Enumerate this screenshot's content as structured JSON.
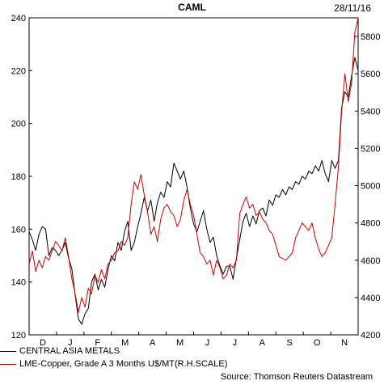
{
  "chart_data": {
    "type": "line",
    "title": "CAML",
    "date_label": "28/11/16",
    "source": "Source: Thomson Reuters Datastream",
    "x_tick_labels": [
      "D",
      "J",
      "F",
      "M",
      "A",
      "M",
      "J",
      "J",
      "A",
      "S",
      "O",
      "N"
    ],
    "left_axis": {
      "ticks": [
        120,
        140,
        160,
        180,
        200,
        220,
        240
      ],
      "range": [
        120,
        240
      ]
    },
    "right_axis": {
      "ticks": [
        4200,
        4400,
        4600,
        4800,
        5000,
        5200,
        5400,
        5600,
        5800
      ],
      "range": [
        4200,
        5900
      ]
    },
    "grid": false,
    "legend_position": "bottom-left",
    "series": [
      {
        "name": "CENTRAL ASIA METALS",
        "color": "#000000",
        "axis": "left",
        "values": [
          [
            0.0,
            159
          ],
          [
            0.01,
            156
          ],
          [
            0.02,
            152
          ],
          [
            0.03,
            158
          ],
          [
            0.04,
            161
          ],
          [
            0.05,
            160
          ],
          [
            0.06,
            150
          ],
          [
            0.07,
            153
          ],
          [
            0.08,
            152
          ],
          [
            0.09,
            150
          ],
          [
            0.1,
            152
          ],
          [
            0.11,
            155
          ],
          [
            0.12,
            149
          ],
          [
            0.13,
            145
          ],
          [
            0.14,
            135
          ],
          [
            0.15,
            126
          ],
          [
            0.16,
            124
          ],
          [
            0.17,
            128
          ],
          [
            0.18,
            130
          ],
          [
            0.19,
            140
          ],
          [
            0.2,
            143
          ],
          [
            0.21,
            137
          ],
          [
            0.22,
            141
          ],
          [
            0.23,
            138
          ],
          [
            0.24,
            145
          ],
          [
            0.25,
            150
          ],
          [
            0.26,
            148
          ],
          [
            0.27,
            155
          ],
          [
            0.28,
            152
          ],
          [
            0.29,
            159
          ],
          [
            0.3,
            163
          ],
          [
            0.31,
            152
          ],
          [
            0.32,
            155
          ],
          [
            0.33,
            161
          ],
          [
            0.34,
            166
          ],
          [
            0.35,
            172
          ],
          [
            0.36,
            167
          ],
          [
            0.37,
            171
          ],
          [
            0.38,
            163
          ],
          [
            0.39,
            170
          ],
          [
            0.4,
            174
          ],
          [
            0.41,
            172
          ],
          [
            0.42,
            178
          ],
          [
            0.43,
            176
          ],
          [
            0.44,
            185
          ],
          [
            0.45,
            182
          ],
          [
            0.46,
            179
          ],
          [
            0.47,
            182
          ],
          [
            0.48,
            176
          ],
          [
            0.49,
            168
          ],
          [
            0.5,
            162
          ],
          [
            0.51,
            159
          ],
          [
            0.52,
            163
          ],
          [
            0.53,
            167
          ],
          [
            0.54,
            160
          ],
          [
            0.55,
            155
          ],
          [
            0.56,
            157
          ],
          [
            0.57,
            150
          ],
          [
            0.58,
            146
          ],
          [
            0.59,
            143
          ],
          [
            0.6,
            146
          ],
          [
            0.61,
            146
          ],
          [
            0.62,
            141
          ],
          [
            0.63,
            149
          ],
          [
            0.64,
            156
          ],
          [
            0.65,
            163
          ],
          [
            0.66,
            166
          ],
          [
            0.67,
            161
          ],
          [
            0.68,
            165
          ],
          [
            0.69,
            162
          ],
          [
            0.7,
            167
          ],
          [
            0.71,
            168
          ],
          [
            0.72,
            165
          ],
          [
            0.73,
            171
          ],
          [
            0.74,
            169
          ],
          [
            0.75,
            173
          ],
          [
            0.76,
            172
          ],
          [
            0.77,
            175
          ],
          [
            0.78,
            173
          ],
          [
            0.79,
            176
          ],
          [
            0.8,
            175
          ],
          [
            0.81,
            178
          ],
          [
            0.82,
            177
          ],
          [
            0.83,
            180
          ],
          [
            0.84,
            179
          ],
          [
            0.85,
            182
          ],
          [
            0.86,
            181
          ],
          [
            0.87,
            184
          ],
          [
            0.88,
            182
          ],
          [
            0.89,
            186
          ],
          [
            0.9,
            181
          ],
          [
            0.91,
            178
          ],
          [
            0.92,
            186
          ],
          [
            0.93,
            183
          ],
          [
            0.94,
            186
          ],
          [
            0.95,
            206
          ],
          [
            0.96,
            212
          ],
          [
            0.97,
            210
          ],
          [
            0.98,
            218
          ],
          [
            0.99,
            225
          ],
          [
            1.0,
            220
          ]
        ]
      },
      {
        "name": "LME-Copper, Grade A 3 Months U$/MT(R.H.SCALE)",
        "color": "#cc0000",
        "axis": "right",
        "values": [
          [
            0.0,
            4580
          ],
          [
            0.01,
            4650
          ],
          [
            0.02,
            4540
          ],
          [
            0.03,
            4600
          ],
          [
            0.04,
            4560
          ],
          [
            0.05,
            4620
          ],
          [
            0.06,
            4600
          ],
          [
            0.07,
            4650
          ],
          [
            0.08,
            4700
          ],
          [
            0.09,
            4680
          ],
          [
            0.1,
            4650
          ],
          [
            0.11,
            4720
          ],
          [
            0.12,
            4620
          ],
          [
            0.13,
            4500
          ],
          [
            0.14,
            4420
          ],
          [
            0.15,
            4320
          ],
          [
            0.16,
            4400
          ],
          [
            0.17,
            4350
          ],
          [
            0.18,
            4450
          ],
          [
            0.19,
            4420
          ],
          [
            0.2,
            4520
          ],
          [
            0.21,
            4480
          ],
          [
            0.22,
            4550
          ],
          [
            0.23,
            4500
          ],
          [
            0.24,
            4580
          ],
          [
            0.25,
            4600
          ],
          [
            0.26,
            4640
          ],
          [
            0.27,
            4650
          ],
          [
            0.28,
            4700
          ],
          [
            0.29,
            4680
          ],
          [
            0.3,
            4720
          ],
          [
            0.31,
            4900
          ],
          [
            0.32,
            5020
          ],
          [
            0.33,
            4980
          ],
          [
            0.34,
            5060
          ],
          [
            0.35,
            4950
          ],
          [
            0.36,
            4860
          ],
          [
            0.37,
            4740
          ],
          [
            0.38,
            4780
          ],
          [
            0.39,
            4700
          ],
          [
            0.4,
            4820
          ],
          [
            0.41,
            4880
          ],
          [
            0.42,
            4900
          ],
          [
            0.43,
            4860
          ],
          [
            0.44,
            4840
          ],
          [
            0.45,
            4780
          ],
          [
            0.46,
            4820
          ],
          [
            0.47,
            4920
          ],
          [
            0.48,
            4980
          ],
          [
            0.49,
            4900
          ],
          [
            0.5,
            4840
          ],
          [
            0.51,
            4740
          ],
          [
            0.52,
            4640
          ],
          [
            0.53,
            4620
          ],
          [
            0.54,
            4580
          ],
          [
            0.55,
            4600
          ],
          [
            0.56,
            4520
          ],
          [
            0.57,
            4600
          ],
          [
            0.58,
            4560
          ],
          [
            0.59,
            4500
          ],
          [
            0.6,
            4520
          ],
          [
            0.61,
            4580
          ],
          [
            0.62,
            4560
          ],
          [
            0.63,
            4600
          ],
          [
            0.64,
            4850
          ],
          [
            0.65,
            4900
          ],
          [
            0.66,
            4940
          ],
          [
            0.67,
            4880
          ],
          [
            0.68,
            4900
          ],
          [
            0.69,
            4840
          ],
          [
            0.7,
            4860
          ],
          [
            0.71,
            4820
          ],
          [
            0.72,
            4800
          ],
          [
            0.73,
            4760
          ],
          [
            0.74,
            4740
          ],
          [
            0.75,
            4680
          ],
          [
            0.76,
            4620
          ],
          [
            0.77,
            4610
          ],
          [
            0.78,
            4600
          ],
          [
            0.79,
            4620
          ],
          [
            0.8,
            4640
          ],
          [
            0.81,
            4720
          ],
          [
            0.82,
            4760
          ],
          [
            0.83,
            4800
          ],
          [
            0.84,
            4780
          ],
          [
            0.85,
            4760
          ],
          [
            0.86,
            4800
          ],
          [
            0.87,
            4720
          ],
          [
            0.88,
            4660
          ],
          [
            0.89,
            4620
          ],
          [
            0.9,
            4640
          ],
          [
            0.91,
            4680
          ],
          [
            0.92,
            4720
          ],
          [
            0.93,
            4900
          ],
          [
            0.94,
            5100
          ],
          [
            0.95,
            5400
          ],
          [
            0.96,
            5600
          ],
          [
            0.97,
            5450
          ],
          [
            0.98,
            5550
          ],
          [
            0.99,
            5820
          ],
          [
            1.0,
            5900
          ]
        ]
      }
    ]
  }
}
